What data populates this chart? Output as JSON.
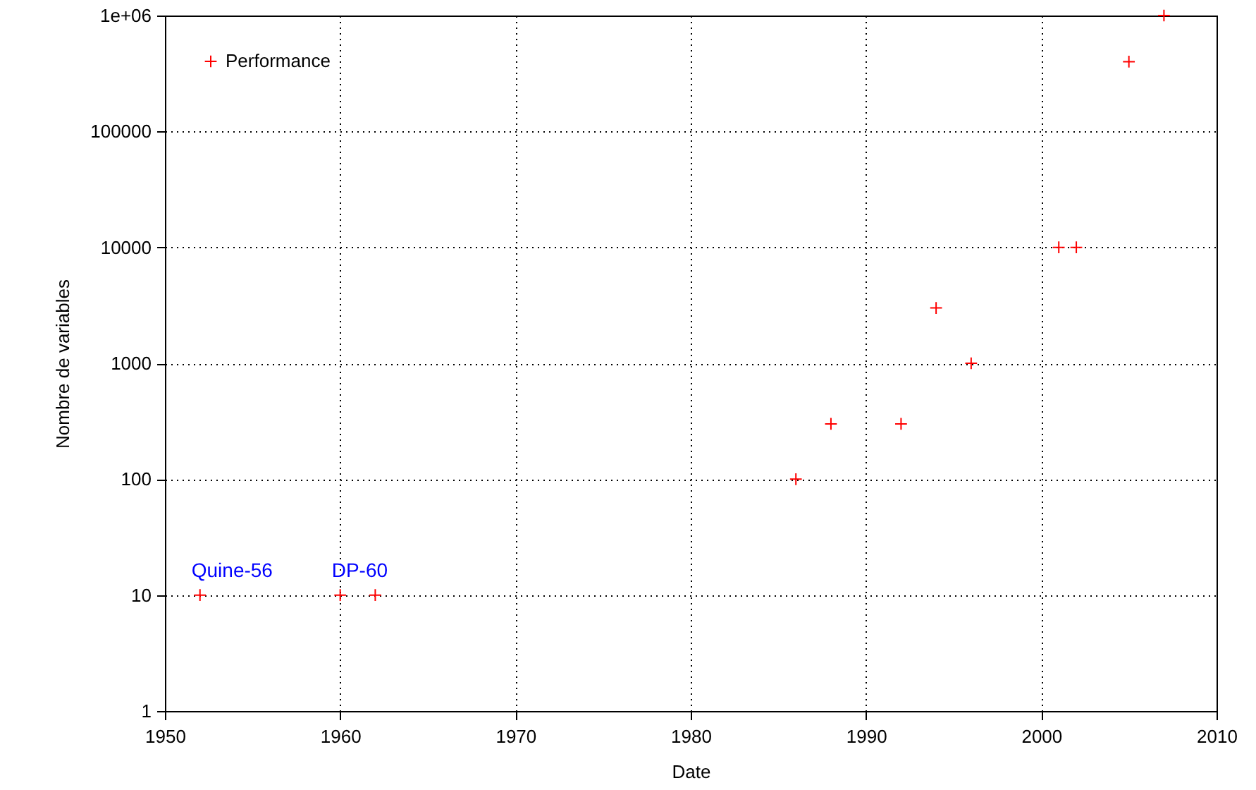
{
  "chart_data": {
    "type": "scatter",
    "xlabel": "Date",
    "ylabel": "Nombre de variables",
    "log": true,
    "grid": true,
    "marker": "cross",
    "legend": "top left",
    "xlim": [
      1950,
      2010
    ],
    "xticks": [
      1950,
      1960,
      1970,
      1980,
      1990,
      2000,
      2010
    ],
    "ylim": [
      1,
      1000000
    ],
    "yticks": [
      1,
      10,
      100,
      1000,
      10000,
      100000,
      {
        "value": 1000000,
        "label": "1e+06"
      }
    ],
    "x": [
      1952,
      1960,
      1962,
      1986,
      1988,
      1992,
      1994,
      1996,
      2001,
      2002,
      2005,
      2007
    ],
    "series": [
      {
        "name": "Performance",
        "color": "#ff0000",
        "values": [
          10,
          10,
          10,
          100,
          300,
          300,
          3000,
          1000,
          10000,
          10000,
          400000,
          1000000
        ]
      }
    ],
    "annotations": [
      {
        "text": "Quine-56",
        "x": 1952,
        "y": 10
      },
      {
        "text": "DP-60",
        "x": 1960,
        "y": 10
      }
    ]
  }
}
